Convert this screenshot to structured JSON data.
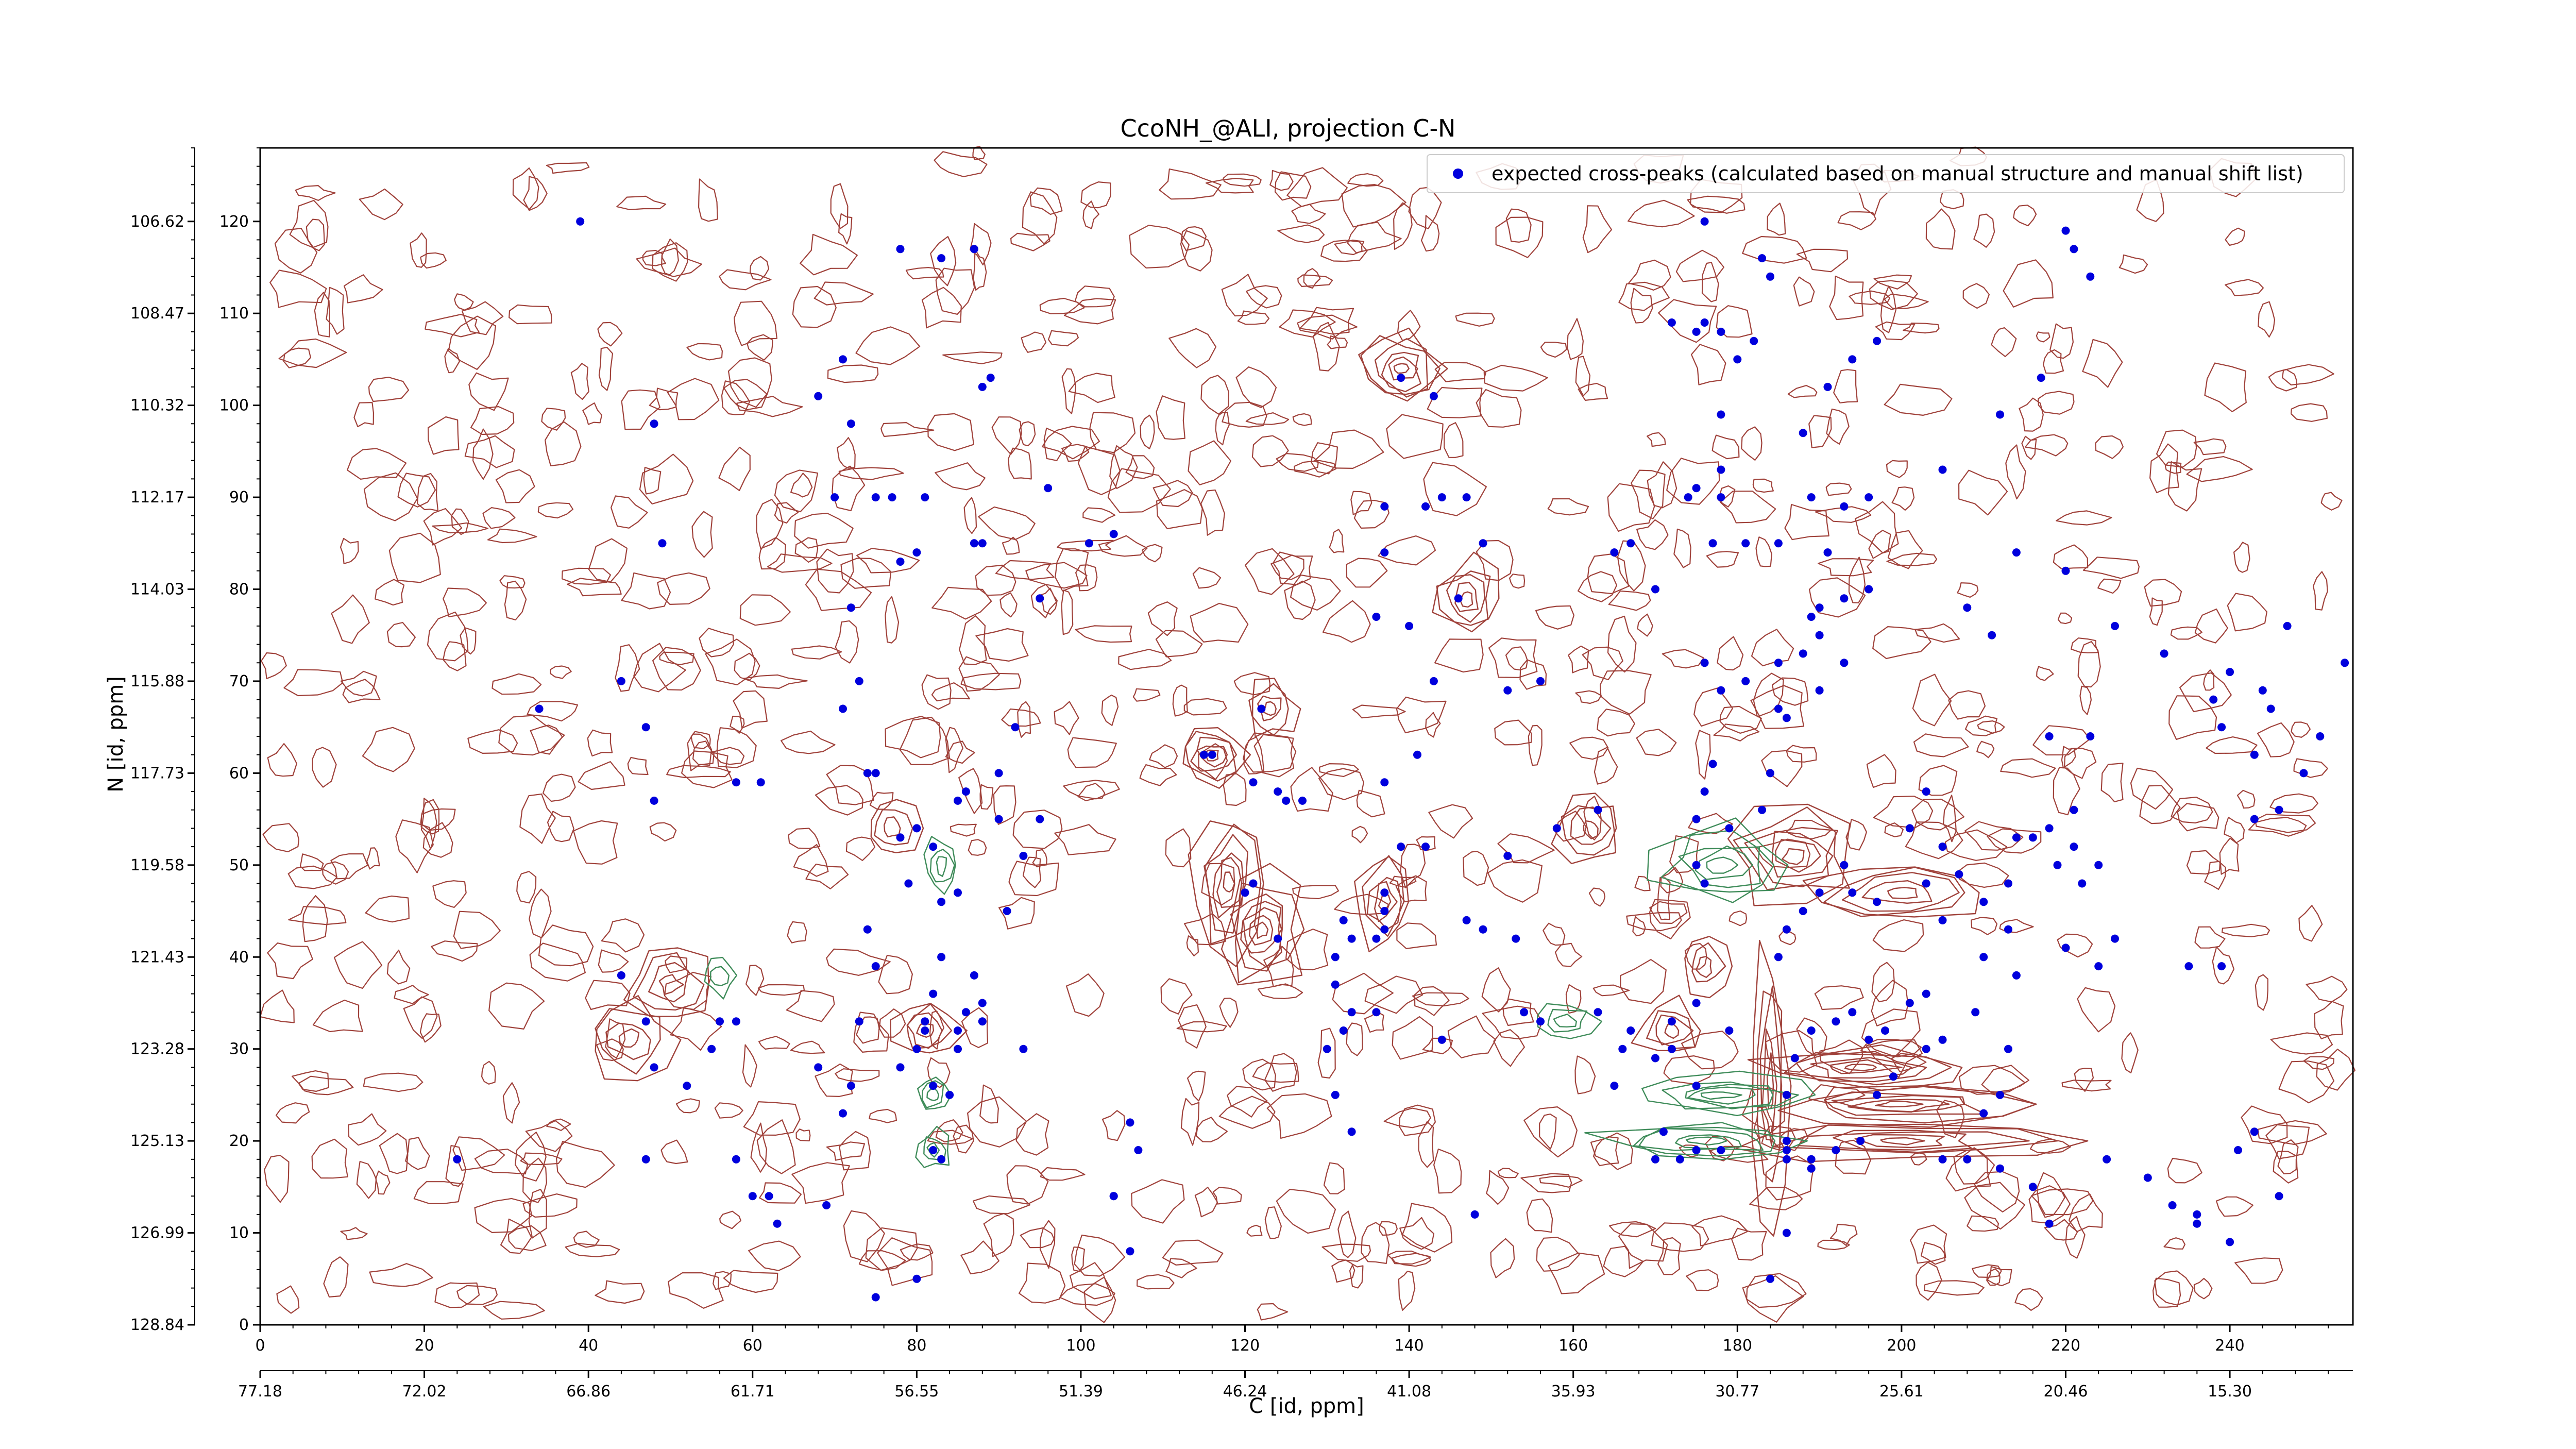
{
  "title": "CcoNH_@ALI, projection C-N",
  "xlabel": "C [id, ppm]",
  "ylabel": "N [id, ppm]",
  "legend_label": "expected cross-peaks (calculated based on manual structure and manual shift list)",
  "colors": {
    "positive_contour": "#a0423b",
    "negative_contour": "#3f8c5a",
    "peaks": "#0000dd"
  },
  "chart_data": {
    "type": "scatter",
    "x_index_range": [
      0,
      255
    ],
    "y_index_range": [
      0,
      128
    ],
    "x_ticks": [
      0,
      20,
      40,
      60,
      80,
      100,
      120,
      140,
      160,
      180,
      200,
      220,
      240
    ],
    "y_ticks": [
      0,
      10,
      20,
      30,
      40,
      50,
      60,
      70,
      80,
      90,
      100,
      110,
      120
    ],
    "x_ppm_ticks": [
      "77.18",
      "72.02",
      "66.86",
      "61.71",
      "56.55",
      "51.39",
      "46.24",
      "41.08",
      "35.93",
      "30.77",
      "25.61",
      "20.46",
      "15.30"
    ],
    "y_ppm_ticks": [
      "128.84",
      "126.99",
      "125.13",
      "123.28",
      "121.43",
      "119.58",
      "117.73",
      "115.88",
      "114.03",
      "112.17",
      "110.32",
      "108.47",
      "106.62"
    ],
    "legend_position": "top-right",
    "peaks": [
      [
        39,
        120
      ],
      [
        48,
        98
      ],
      [
        49,
        85
      ],
      [
        44,
        70
      ],
      [
        34,
        67
      ],
      [
        47,
        65
      ],
      [
        48,
        57
      ],
      [
        58,
        59
      ],
      [
        61,
        59
      ],
      [
        47,
        33
      ],
      [
        44,
        38
      ],
      [
        48,
        28
      ],
      [
        52,
        26
      ],
      [
        56,
        33
      ],
      [
        55,
        30
      ],
      [
        58,
        33
      ],
      [
        24,
        18
      ],
      [
        47,
        18
      ],
      [
        58,
        18
      ],
      [
        60,
        14
      ],
      [
        62,
        14
      ],
      [
        63,
        11
      ],
      [
        69,
        13
      ],
      [
        71,
        23
      ],
      [
        73,
        33
      ],
      [
        72,
        78
      ],
      [
        71,
        67
      ],
      [
        73,
        70
      ],
      [
        70,
        90
      ],
      [
        71,
        105
      ],
      [
        68,
        101
      ],
      [
        72,
        98
      ],
      [
        75,
        90
      ],
      [
        77,
        90
      ],
      [
        78,
        83
      ],
      [
        81,
        90
      ],
      [
        80,
        84
      ],
      [
        74,
        60
      ],
      [
        75,
        60
      ],
      [
        79,
        48
      ],
      [
        74,
        43
      ],
      [
        75,
        39
      ],
      [
        78,
        53
      ],
      [
        80,
        54
      ],
      [
        82,
        52
      ],
      [
        83,
        46
      ],
      [
        85,
        47
      ],
      [
        85,
        57
      ],
      [
        86,
        58
      ],
      [
        90,
        60
      ],
      [
        91,
        45
      ],
      [
        93,
        51
      ],
      [
        90,
        55
      ],
      [
        92,
        65
      ],
      [
        95,
        55
      ],
      [
        82,
        36
      ],
      [
        83,
        40
      ],
      [
        81,
        33
      ],
      [
        80,
        30
      ],
      [
        81,
        32
      ],
      [
        85,
        30
      ],
      [
        85,
        32
      ],
      [
        86,
        34
      ],
      [
        88,
        33
      ],
      [
        87,
        38
      ],
      [
        82,
        26
      ],
      [
        84,
        25
      ],
      [
        88,
        35
      ],
      [
        93,
        30
      ],
      [
        78,
        28
      ],
      [
        68,
        28
      ],
      [
        72,
        26
      ],
      [
        83,
        18
      ],
      [
        82,
        19
      ],
      [
        80,
        5
      ],
      [
        75,
        3
      ],
      [
        87,
        117
      ],
      [
        83,
        116
      ],
      [
        78,
        117
      ],
      [
        89,
        103
      ],
      [
        88,
        102
      ],
      [
        88,
        85
      ],
      [
        87,
        85
      ],
      [
        96,
        91
      ],
      [
        95,
        79
      ],
      [
        101,
        85
      ],
      [
        104,
        86
      ],
      [
        104,
        14
      ],
      [
        107,
        19
      ],
      [
        106,
        22
      ],
      [
        104,
        14
      ],
      [
        106,
        8
      ],
      [
        116,
        62
      ],
      [
        115,
        62
      ],
      [
        120,
        47
      ],
      [
        121,
        48
      ],
      [
        122,
        67
      ],
      [
        121,
        59
      ],
      [
        124,
        58
      ],
      [
        125,
        57
      ],
      [
        127,
        57
      ],
      [
        124,
        42
      ],
      [
        132,
        44
      ],
      [
        131,
        40
      ],
      [
        131,
        37
      ],
      [
        133,
        42
      ],
      [
        133,
        34
      ],
      [
        132,
        32
      ],
      [
        136,
        34
      ],
      [
        130,
        30
      ],
      [
        133,
        21
      ],
      [
        131,
        25
      ],
      [
        137,
        45
      ],
      [
        137,
        47
      ],
      [
        137,
        43
      ],
      [
        136,
        42
      ],
      [
        137,
        59
      ],
      [
        140,
        76
      ],
      [
        141,
        62
      ],
      [
        143,
        70
      ],
      [
        142,
        52
      ],
      [
        139,
        52
      ],
      [
        144,
        31
      ],
      [
        139,
        103
      ],
      [
        143,
        101
      ],
      [
        136,
        77
      ],
      [
        137,
        89
      ],
      [
        137,
        84
      ],
      [
        142,
        89
      ],
      [
        144,
        90
      ],
      [
        147,
        90
      ],
      [
        146,
        79
      ],
      [
        149,
        85
      ],
      [
        147,
        44
      ],
      [
        149,
        43
      ],
      [
        148,
        12
      ],
      [
        152,
        69
      ],
      [
        152,
        51
      ],
      [
        156,
        70
      ],
      [
        165,
        84
      ],
      [
        167,
        85
      ],
      [
        170,
        80
      ],
      [
        163,
        56
      ],
      [
        158,
        54
      ],
      [
        153,
        42
      ],
      [
        154,
        34
      ],
      [
        156,
        33
      ],
      [
        163,
        34
      ],
      [
        165,
        26
      ],
      [
        167,
        32
      ],
      [
        166,
        30
      ],
      [
        170,
        29
      ],
      [
        172,
        33
      ],
      [
        175,
        35
      ],
      [
        172,
        30
      ],
      [
        175,
        26
      ],
      [
        171,
        21
      ],
      [
        178,
        19
      ],
      [
        175,
        19
      ],
      [
        170,
        18
      ],
      [
        173,
        18
      ],
      [
        179,
        32
      ],
      [
        174,
        90
      ],
      [
        178,
        90
      ],
      [
        176,
        72
      ],
      [
        178,
        69
      ],
      [
        176,
        58
      ],
      [
        175,
        55
      ],
      [
        179,
        54
      ],
      [
        175,
        50
      ],
      [
        176,
        48
      ],
      [
        177,
        61
      ],
      [
        181,
        70
      ],
      [
        185,
        72
      ],
      [
        185,
        67
      ],
      [
        186,
        66
      ],
      [
        188,
        73
      ],
      [
        190,
        69
      ],
      [
        189,
        77
      ],
      [
        191,
        84
      ],
      [
        189,
        90
      ],
      [
        193,
        89
      ],
      [
        196,
        90
      ],
      [
        180,
        105
      ],
      [
        178,
        99
      ],
      [
        172,
        109
      ],
      [
        176,
        109
      ],
      [
        178,
        108
      ],
      [
        175,
        108
      ],
      [
        178,
        93
      ],
      [
        175,
        91
      ],
      [
        177,
        85
      ],
      [
        181,
        85
      ],
      [
        185,
        85
      ],
      [
        188,
        97
      ],
      [
        182,
        107
      ],
      [
        184,
        114
      ],
      [
        183,
        116
      ],
      [
        176,
        120
      ],
      [
        191,
        102
      ],
      [
        194,
        105
      ],
      [
        197,
        107
      ],
      [
        190,
        75
      ],
      [
        193,
        72
      ],
      [
        196,
        80
      ],
      [
        190,
        78
      ],
      [
        193,
        79
      ],
      [
        184,
        5
      ],
      [
        186,
        10
      ],
      [
        186,
        20
      ],
      [
        186,
        19
      ],
      [
        186,
        18
      ],
      [
        186,
        25
      ],
      [
        187,
        29
      ],
      [
        189,
        32
      ],
      [
        192,
        33
      ],
      [
        194,
        34
      ],
      [
        196,
        31
      ],
      [
        198,
        32
      ],
      [
        185,
        40
      ],
      [
        186,
        43
      ],
      [
        188,
        45
      ],
      [
        190,
        47
      ],
      [
        193,
        50
      ],
      [
        194,
        47
      ],
      [
        197,
        46
      ],
      [
        201,
        54
      ],
      [
        203,
        58
      ],
      [
        205,
        52
      ],
      [
        207,
        49
      ],
      [
        210,
        46
      ],
      [
        213,
        48
      ],
      [
        214,
        53
      ],
      [
        218,
        54
      ],
      [
        221,
        56
      ],
      [
        221,
        52
      ],
      [
        220,
        41
      ],
      [
        214,
        38
      ],
      [
        210,
        40
      ],
      [
        213,
        43
      ],
      [
        205,
        44
      ],
      [
        203,
        48
      ],
      [
        203,
        30
      ],
      [
        205,
        31
      ],
      [
        209,
        34
      ],
      [
        213,
        30
      ],
      [
        212,
        25
      ],
      [
        210,
        23
      ],
      [
        205,
        18
      ],
      [
        208,
        18
      ],
      [
        212,
        17
      ],
      [
        216,
        15
      ],
      [
        218,
        11
      ],
      [
        225,
        18
      ],
      [
        230,
        16
      ],
      [
        233,
        13
      ],
      [
        236,
        11
      ],
      [
        236,
        12
      ],
      [
        240,
        9
      ],
      [
        246,
        14
      ],
      [
        241,
        19
      ],
      [
        243,
        21
      ],
      [
        235,
        39
      ],
      [
        239,
        39
      ],
      [
        243,
        62
      ],
      [
        238,
        68
      ],
      [
        232,
        73
      ],
      [
        226,
        76
      ],
      [
        220,
        82
      ],
      [
        214,
        84
      ],
      [
        212,
        99
      ],
      [
        217,
        103
      ],
      [
        220,
        119
      ],
      [
        221,
        117
      ],
      [
        223,
        114
      ],
      [
        205,
        93
      ],
      [
        208,
        78
      ],
      [
        211,
        75
      ],
      [
        218,
        64
      ],
      [
        223,
        64
      ],
      [
        240,
        71
      ],
      [
        244,
        69
      ],
      [
        247,
        76
      ],
      [
        245,
        67
      ],
      [
        239,
        65
      ],
      [
        243,
        55
      ],
      [
        246,
        56
      ],
      [
        249,
        60
      ],
      [
        251,
        64
      ],
      [
        254,
        72
      ],
      [
        216,
        53
      ],
      [
        219,
        50
      ],
      [
        224,
        50
      ],
      [
        222,
        48
      ],
      [
        226,
        42
      ],
      [
        224,
        39
      ],
      [
        201,
        35
      ],
      [
        203,
        36
      ],
      [
        199,
        27
      ],
      [
        197,
        25
      ],
      [
        195,
        20
      ],
      [
        192,
        19
      ],
      [
        189,
        18
      ],
      [
        189,
        17
      ],
      [
        184,
        60
      ],
      [
        183,
        56
      ]
    ]
  }
}
